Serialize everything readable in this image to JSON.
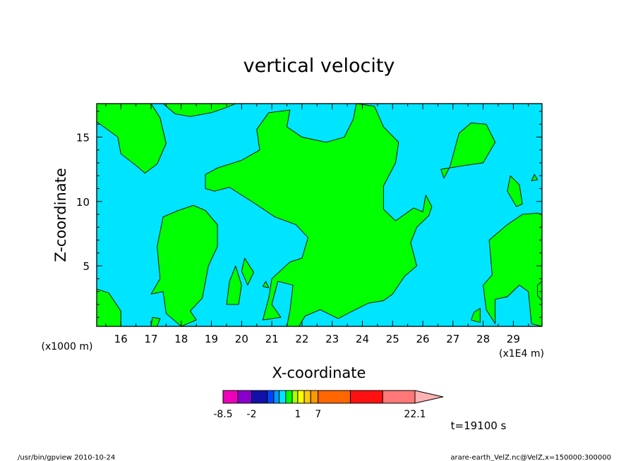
{
  "chart_data": {
    "type": "heatmap",
    "title": "vertical velocity",
    "xlabel": "X-coordinate",
    "ylabel": "Z-coordinate",
    "x_unit": "(x1E4 m)",
    "y_unit": "(x1000 m)",
    "xlim": [
      15.2,
      29.95
    ],
    "ylim": [
      0.3,
      17.6
    ],
    "x_ticks": [
      16,
      17,
      18,
      19,
      20,
      21,
      22,
      23,
      24,
      25,
      26,
      27,
      28,
      29
    ],
    "y_ticks": [
      5,
      10,
      15
    ],
    "background_color": "#00e5ff",
    "region_color": "#00ff00",
    "regions": [
      {
        "points": [
          [
            15.2,
            17.6
          ],
          [
            15.2,
            16.2
          ],
          [
            15.9,
            15.0
          ],
          [
            16.0,
            13.7
          ],
          [
            16.5,
            12.8
          ],
          [
            16.8,
            12.2
          ],
          [
            17.2,
            12.9
          ],
          [
            17.5,
            14.5
          ],
          [
            17.3,
            16.5
          ],
          [
            17.0,
            17.6
          ]
        ]
      },
      {
        "points": [
          [
            17.4,
            17.6
          ],
          [
            17.8,
            16.8
          ],
          [
            18.3,
            16.6
          ],
          [
            19.0,
            16.9
          ],
          [
            19.5,
            17.3
          ],
          [
            19.8,
            17.6
          ]
        ]
      },
      {
        "points": [
          [
            19.2,
            12.6
          ],
          [
            20.0,
            13.2
          ],
          [
            20.6,
            14.0
          ],
          [
            20.5,
            15.6
          ],
          [
            20.9,
            16.9
          ],
          [
            21.6,
            17.1
          ],
          [
            21.5,
            15.8
          ],
          [
            22.0,
            15.0
          ],
          [
            22.8,
            14.6
          ],
          [
            23.4,
            15.0
          ],
          [
            23.7,
            16.4
          ],
          [
            23.8,
            17.6
          ],
          [
            24.4,
            17.4
          ],
          [
            24.7,
            15.8
          ],
          [
            25.2,
            14.6
          ],
          [
            25.1,
            13.0
          ],
          [
            24.7,
            11.2
          ],
          [
            24.7,
            9.4
          ],
          [
            25.1,
            8.5
          ],
          [
            25.7,
            9.5
          ],
          [
            26.0,
            9.2
          ],
          [
            26.1,
            10.5
          ],
          [
            26.3,
            9.6
          ],
          [
            26.2,
            8.9
          ],
          [
            25.8,
            8.0
          ],
          [
            25.6,
            6.8
          ],
          [
            25.8,
            5.0
          ],
          [
            25.4,
            4.2
          ],
          [
            25.0,
            2.8
          ],
          [
            24.7,
            2.3
          ],
          [
            24.2,
            2.1
          ],
          [
            23.6,
            1.4
          ],
          [
            23.2,
            0.9
          ],
          [
            22.6,
            1.6
          ],
          [
            22.1,
            1.1
          ],
          [
            21.9,
            0.3
          ],
          [
            21.5,
            0.3
          ],
          [
            21.6,
            1.5
          ],
          [
            21.7,
            3.5
          ],
          [
            21.2,
            3.8
          ],
          [
            21.0,
            2.0
          ],
          [
            21.3,
            1.0
          ],
          [
            20.7,
            0.8
          ],
          [
            20.9,
            2.5
          ],
          [
            21.0,
            4.0
          ],
          [
            21.6,
            5.3
          ],
          [
            22.0,
            5.6
          ],
          [
            22.2,
            7.2
          ],
          [
            21.8,
            8.2
          ],
          [
            21.1,
            8.8
          ],
          [
            20.4,
            9.9
          ],
          [
            19.6,
            11.1
          ],
          [
            19.1,
            10.8
          ],
          [
            18.8,
            11.0
          ],
          [
            18.8,
            12.1
          ]
        ]
      },
      {
        "points": [
          [
            17.4,
            8.8
          ],
          [
            17.9,
            9.3
          ],
          [
            18.4,
            9.7
          ],
          [
            18.8,
            9.3
          ],
          [
            19.2,
            8.2
          ],
          [
            19.2,
            6.5
          ],
          [
            18.9,
            5.0
          ],
          [
            18.7,
            2.5
          ],
          [
            18.3,
            1.5
          ],
          [
            18.5,
            0.8
          ],
          [
            18.0,
            0.3
          ],
          [
            17.5,
            1.3
          ],
          [
            17.4,
            3.0
          ],
          [
            17.0,
            2.8
          ],
          [
            17.3,
            4.0
          ],
          [
            17.2,
            6.5
          ]
        ]
      },
      {
        "points": [
          [
            15.2,
            3.2
          ],
          [
            15.6,
            2.9
          ],
          [
            16.0,
            1.5
          ],
          [
            16.0,
            0.3
          ],
          [
            15.2,
            0.3
          ]
        ]
      },
      {
        "points": [
          [
            19.8,
            5.0
          ],
          [
            20.0,
            3.5
          ],
          [
            19.9,
            2.0
          ],
          [
            19.5,
            2.0
          ],
          [
            19.6,
            3.8
          ]
        ]
      },
      {
        "points": [
          [
            20.1,
            5.6
          ],
          [
            20.4,
            4.5
          ],
          [
            20.2,
            3.5
          ],
          [
            20.0,
            4.6
          ]
        ]
      },
      {
        "points": [
          [
            20.8,
            3.8
          ],
          [
            20.9,
            3.3
          ],
          [
            20.7,
            3.4
          ]
        ]
      },
      {
        "points": [
          [
            27.2,
            15.3
          ],
          [
            27.6,
            16.1
          ],
          [
            28.1,
            16.0
          ],
          [
            28.4,
            14.6
          ],
          [
            28.0,
            13.0
          ],
          [
            27.4,
            12.8
          ],
          [
            26.6,
            12.5
          ],
          [
            26.7,
            11.8
          ],
          [
            26.9,
            12.7
          ]
        ]
      },
      {
        "points": [
          [
            28.0,
            3.5
          ],
          [
            28.3,
            4.3
          ],
          [
            28.2,
            7.0
          ],
          [
            28.8,
            8.2
          ],
          [
            29.3,
            9.0
          ],
          [
            29.8,
            9.1
          ],
          [
            29.95,
            9.0
          ],
          [
            29.95,
            0.3
          ],
          [
            29.6,
            0.5
          ],
          [
            29.5,
            3.0
          ],
          [
            29.2,
            3.5
          ],
          [
            28.8,
            2.6
          ],
          [
            28.4,
            2.4
          ],
          [
            28.4,
            0.5
          ],
          [
            28.1,
            1.6
          ]
        ]
      },
      {
        "points": [
          [
            28.9,
            12.0
          ],
          [
            29.2,
            11.3
          ],
          [
            29.3,
            9.8
          ],
          [
            29.1,
            9.6
          ],
          [
            28.8,
            10.8
          ]
        ]
      },
      {
        "points": [
          [
            29.7,
            12.1
          ],
          [
            29.8,
            11.7
          ],
          [
            29.6,
            11.6
          ]
        ]
      },
      {
        "points": [
          [
            27.7,
            1.4
          ],
          [
            27.9,
            1.7
          ],
          [
            27.9,
            0.6
          ],
          [
            27.6,
            0.8
          ]
        ]
      },
      {
        "points": [
          [
            17.05,
            1.0
          ],
          [
            17.3,
            0.9
          ],
          [
            17.2,
            0.3
          ],
          [
            17.0,
            0.3
          ]
        ]
      },
      {
        "points": [
          [
            29.8,
            3.5
          ],
          [
            29.95,
            3.8
          ],
          [
            29.95,
            2.3
          ],
          [
            29.8,
            2.7
          ]
        ]
      }
    ],
    "colorbar": {
      "labels": [
        "-8.5",
        "-2",
        "1",
        "7",
        "22.1"
      ],
      "boundaries": [
        -8.5,
        -5.5,
        -2.0,
        -1.5,
        -1.0,
        -0.5,
        0,
        0.5,
        1.0,
        1.5,
        2.0,
        7.0,
        11.5,
        16.0,
        22.1
      ],
      "colors": [
        "#ee00bb",
        "#8800cc",
        "#1111aa",
        "#0044ff",
        "#0099ff",
        "#00e5ff",
        "#00ff00",
        "#aaff00",
        "#ffff00",
        "#ffcc00",
        "#ff9900",
        "#ff6600",
        "#ff1111",
        "#ff7777",
        "#ffb2b2"
      ]
    },
    "time_label": "t=19100 s"
  },
  "footer": {
    "left": "/usr/bin/gpview  2010-10-24",
    "right": "arare-earth_VelZ.nc@VelZ,x=150000:300000"
  }
}
